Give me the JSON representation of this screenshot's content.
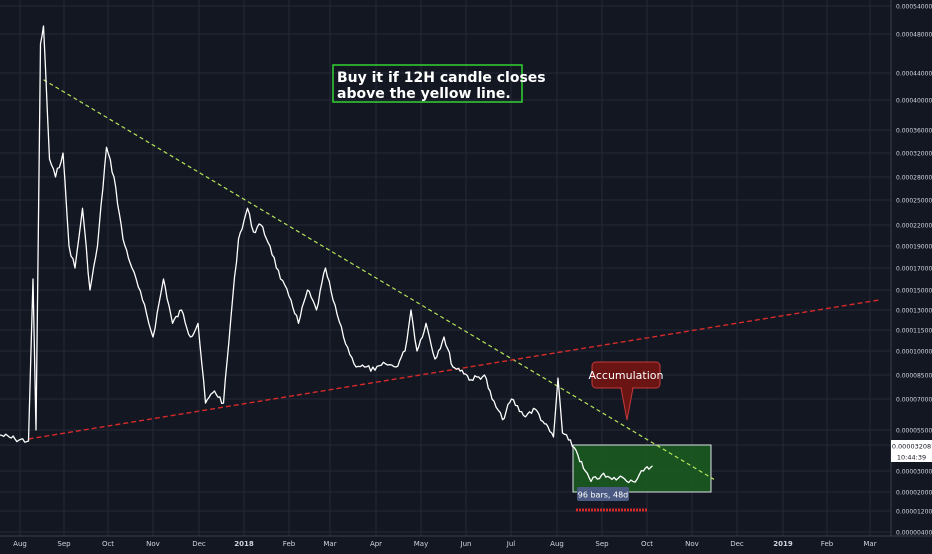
{
  "colors": {
    "background": "#131722",
    "grid": "#262a36",
    "price_line": "#ffffff",
    "resistance_line": "#b5e35b",
    "support_line": "#d62a2a",
    "accumulation_box_fill": "#1b5e20",
    "accumulation_box_border": "#dfe3e8",
    "note_border": "#33d433",
    "note_text": "#ffffff",
    "callout_bg": "#6b1414",
    "callout_border": "#c43a3a",
    "measure_bg": "#4a5a82",
    "axis_text": "#d1d4dc"
  },
  "annotations": {
    "note": [
      "Buy it if 12H candle closes",
      "above the yellow line."
    ],
    "callout": "Accumulation",
    "measure": "96 bars, 48d",
    "price_label": "0.00003208",
    "countdown_label": "10:44:39"
  },
  "chart_data": {
    "type": "line",
    "x_tick_labels": [
      "Aug",
      "Sep",
      "Oct",
      "Nov",
      "Dec",
      "2018",
      "Feb",
      "Mar",
      "Apr",
      "May",
      "Jun",
      "Jul",
      "Aug",
      "Sep",
      "Oct",
      "Nov",
      "Dec",
      "2019",
      "Feb",
      "Mar"
    ],
    "y_tick_labels": [
      "0.00054000",
      "0.00048000",
      "0.00044000",
      "0.00040000",
      "0.00036000",
      "0.00032000",
      "0.00028000",
      "0.00025000",
      "0.00022000",
      "0.00019000",
      "0.00017000",
      "0.00015000",
      "0.00013000",
      "0.00011500",
      "0.00010000",
      "0.00008500",
      "0.00007000",
      "0.00005500",
      "0.00004000",
      "0.00003000",
      "0.00002000",
      "0.00001200",
      "0.00000400"
    ],
    "x_range": [
      "2017-07-22",
      "2019-03-25"
    ],
    "grid": true,
    "price_series": [
      [
        "2017-07-22",
        5e-05
      ],
      [
        "2017-08-01",
        4.6e-05
      ],
      [
        "2017-08-10",
        4.4e-05
      ],
      [
        "2017-08-13",
        0.00016
      ],
      [
        "2017-08-15",
        5.5e-05
      ],
      [
        "2017-08-18",
        0.00047
      ],
      [
        "2017-08-20",
        0.0005
      ],
      [
        "2017-08-24",
        0.00031
      ],
      [
        "2017-08-28",
        0.00028
      ],
      [
        "2017-09-02",
        0.00032
      ],
      [
        "2017-09-06",
        0.00019
      ],
      [
        "2017-09-10",
        0.00017
      ],
      [
        "2017-09-15",
        0.00024
      ],
      [
        "2017-09-20",
        0.00015
      ],
      [
        "2017-09-25",
        0.00019
      ],
      [
        "2017-10-01",
        0.00033
      ],
      [
        "2017-10-06",
        0.00028
      ],
      [
        "2017-10-12",
        0.0002
      ],
      [
        "2017-10-18",
        0.00017
      ],
      [
        "2017-10-25",
        0.00014
      ],
      [
        "2017-11-01",
        0.00011
      ],
      [
        "2017-11-08",
        0.00016
      ],
      [
        "2017-11-14",
        0.00012
      ],
      [
        "2017-11-20",
        0.00013
      ],
      [
        "2017-11-26",
        0.00011
      ],
      [
        "2017-12-01",
        0.00012
      ],
      [
        "2017-12-06",
        6.8e-05
      ],
      [
        "2017-12-12",
        7.5e-05
      ],
      [
        "2017-12-18",
        6.8e-05
      ],
      [
        "2017-12-24",
        0.00014
      ],
      [
        "2017-12-28",
        0.0002
      ],
      [
        "2018-01-03",
        0.00024
      ],
      [
        "2018-01-07",
        0.00021
      ],
      [
        "2018-01-12",
        0.00022
      ],
      [
        "2018-01-18",
        0.00019
      ],
      [
        "2018-01-25",
        0.00016
      ],
      [
        "2018-02-01",
        0.00014
      ],
      [
        "2018-02-06",
        0.00012
      ],
      [
        "2018-02-12",
        0.00015
      ],
      [
        "2018-02-18",
        0.00013
      ],
      [
        "2018-02-24",
        0.00017
      ],
      [
        "2018-03-01",
        0.00014
      ],
      [
        "2018-03-08",
        0.00011
      ],
      [
        "2018-03-15",
        9.2e-05
      ],
      [
        "2018-03-22",
        9e-05
      ],
      [
        "2018-03-29",
        8.8e-05
      ],
      [
        "2018-04-05",
        9.2e-05
      ],
      [
        "2018-04-12",
        9e-05
      ],
      [
        "2018-04-18",
        0.0001
      ],
      [
        "2018-04-22",
        0.00013
      ],
      [
        "2018-04-26",
        0.0001
      ],
      [
        "2018-05-02",
        0.00012
      ],
      [
        "2018-05-08",
        9.5e-05
      ],
      [
        "2018-05-14",
        0.00011
      ],
      [
        "2018-05-20",
        9e-05
      ],
      [
        "2018-05-26",
        8.8e-05
      ],
      [
        "2018-06-01",
        8.2e-05
      ],
      [
        "2018-06-10",
        8.5e-05
      ],
      [
        "2018-06-15",
        7e-05
      ],
      [
        "2018-06-22",
        6e-05
      ],
      [
        "2018-06-28",
        7e-05
      ],
      [
        "2018-07-06",
        6.2e-05
      ],
      [
        "2018-07-14",
        6.5e-05
      ],
      [
        "2018-07-20",
        5.8e-05
      ],
      [
        "2018-07-26",
        4.8e-05
      ],
      [
        "2018-07-29",
        8.3e-05
      ],
      [
        "2018-08-01",
        5.2e-05
      ],
      [
        "2018-08-05",
        4.5e-05
      ],
      [
        "2018-08-10",
        3.8e-05
      ],
      [
        "2018-08-15",
        3.1e-05
      ],
      [
        "2018-08-20",
        2.5e-05
      ],
      [
        "2018-08-27",
        2.8e-05
      ],
      [
        "2018-09-03",
        2.6e-05
      ],
      [
        "2018-09-10",
        2.7e-05
      ],
      [
        "2018-09-17",
        2.5e-05
      ],
      [
        "2018-09-24",
        3e-05
      ],
      [
        "2018-09-30",
        3.2e-05
      ]
    ],
    "resistance_line": [
      [
        "2017-08-20",
        0.00043
      ],
      [
        "2018-11-10",
        2.6e-05
      ]
    ],
    "support_line": [
      [
        "2017-08-10",
        4.6e-05
      ],
      [
        "2019-02-28",
        0.00014
      ]
    ],
    "accumulation_zone": {
      "x": [
        "2018-08-08",
        "2018-11-08"
      ],
      "y": [
        2e-05,
        4e-05
      ]
    },
    "measure_range": [
      "2018-08-10",
      "2018-09-27"
    ]
  }
}
